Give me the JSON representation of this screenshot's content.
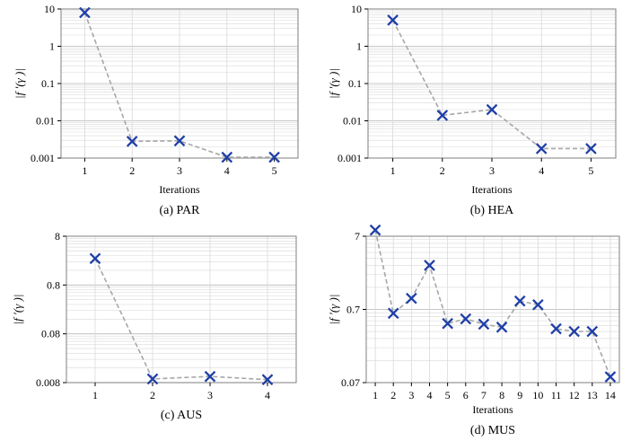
{
  "colors": {
    "marker": "#1f3fa8",
    "line": "#a6a6a6",
    "grid": "#d9d9d9",
    "frame": "#7f7f7f"
  },
  "chart_data": [
    {
      "type": "line",
      "caption": "(a) PAR",
      "xlabel": "Iterations",
      "ylabel": "|f ′(γ )|",
      "yscale": "log",
      "ylim": [
        0.001,
        10
      ],
      "yticks": [
        10,
        1,
        0.1,
        0.01,
        0.001
      ],
      "ytick_labels": [
        "10",
        "1",
        "0.1",
        "0.01",
        "0.001"
      ],
      "xlim": [
        0.5,
        5.5
      ],
      "x": [
        1,
        2,
        3,
        4,
        5
      ],
      "y": [
        8,
        0.0028,
        0.0029,
        0.00105,
        0.00105
      ],
      "grid": true,
      "marker": "x",
      "line_style": "dashed"
    },
    {
      "type": "line",
      "caption": "(b) HEA",
      "xlabel": "Iterations",
      "ylabel": "|f ′(γ )|",
      "yscale": "log",
      "ylim": [
        0.001,
        10
      ],
      "yticks": [
        10,
        1,
        0.1,
        0.01,
        0.001
      ],
      "ytick_labels": [
        "10",
        "1",
        "0.1",
        "0.01",
        "0.001"
      ],
      "xlim": [
        0.5,
        5.5
      ],
      "x": [
        1,
        2,
        3,
        4,
        5
      ],
      "y": [
        5,
        0.014,
        0.02,
        0.0018,
        0.0018
      ],
      "grid": true,
      "marker": "x",
      "line_style": "dashed"
    },
    {
      "type": "line",
      "caption": "(c) AUS",
      "xlabel": "",
      "ylabel": "|f ′(γ )|",
      "yscale": "log",
      "ylim": [
        0.008,
        8
      ],
      "yticks": [
        8,
        0.8,
        0.08,
        0.008
      ],
      "ytick_labels": [
        "8",
        "0.8",
        "0.08",
        "0.008"
      ],
      "xlim": [
        0.5,
        4.5
      ],
      "x": [
        1,
        2,
        3,
        4
      ],
      "y": [
        2.8,
        0.0095,
        0.0107,
        0.0092
      ],
      "grid": true,
      "marker": "x",
      "line_style": "dashed"
    },
    {
      "type": "line",
      "caption": "(d) MUS",
      "xlabel": "Iterations",
      "ylabel": "|f ′(γ )|",
      "yscale": "log",
      "ylim": [
        0.07,
        7
      ],
      "yticks": [
        7,
        0.7,
        0.07
      ],
      "ytick_labels": [
        "7",
        "0.7",
        "0.07"
      ],
      "xlim": [
        0.5,
        14.5
      ],
      "x": [
        1,
        2,
        3,
        4,
        5,
        6,
        7,
        8,
        9,
        10,
        11,
        12,
        13,
        14
      ],
      "y": [
        8.5,
        0.62,
        0.99,
        2.8,
        0.45,
        0.52,
        0.44,
        0.4,
        0.91,
        0.81,
        0.38,
        0.35,
        0.35,
        0.084
      ],
      "grid": true,
      "marker": "x",
      "line_style": "dashed"
    }
  ]
}
